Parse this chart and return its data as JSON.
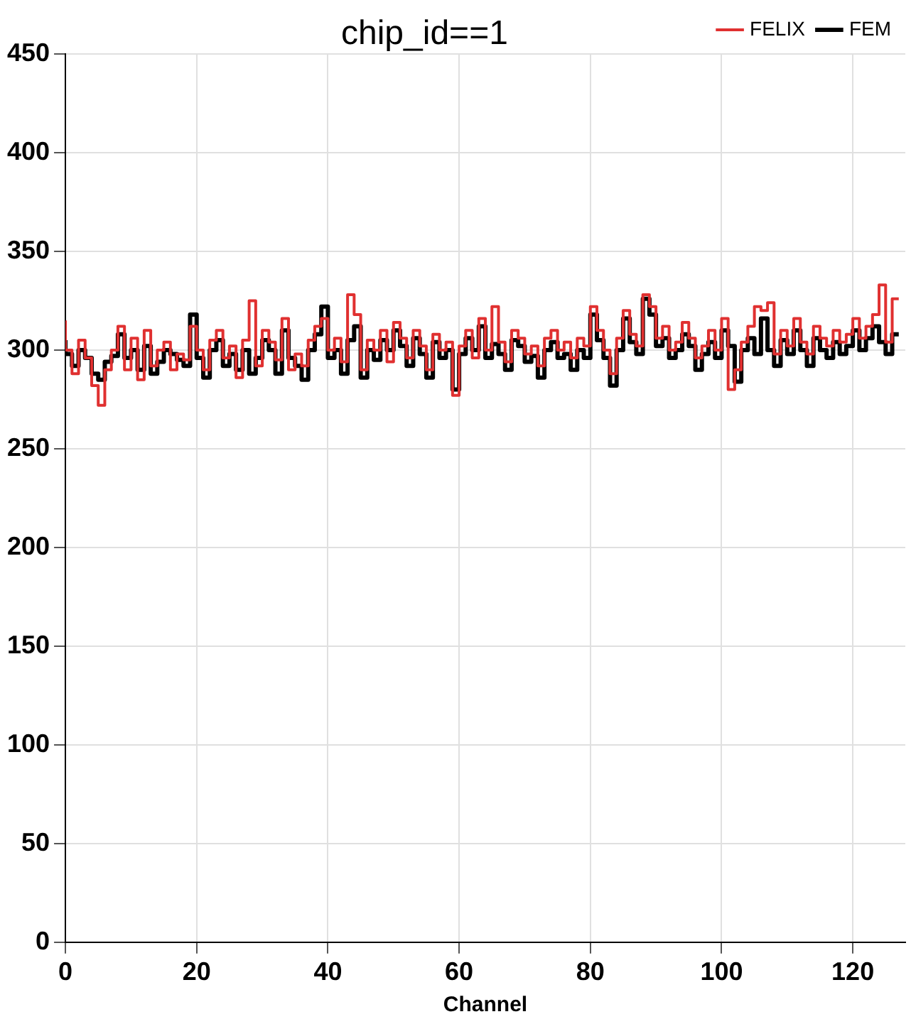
{
  "chart_data": {
    "type": "step",
    "title": "chip_id==1",
    "xlabel": "Channel",
    "x": [
      0,
      1,
      2,
      3,
      4,
      5,
      6,
      7,
      8,
      9,
      10,
      11,
      12,
      13,
      14,
      15,
      16,
      17,
      18,
      19,
      20,
      21,
      22,
      23,
      24,
      25,
      26,
      27,
      28,
      29,
      30,
      31,
      32,
      33,
      34,
      35,
      36,
      37,
      38,
      39,
      40,
      41,
      42,
      43,
      44,
      45,
      46,
      47,
      48,
      49,
      50,
      51,
      52,
      53,
      54,
      55,
      56,
      57,
      58,
      59,
      60,
      61,
      62,
      63,
      64,
      65,
      66,
      67,
      68,
      69,
      70,
      71,
      72,
      73,
      74,
      75,
      76,
      77,
      78,
      79,
      80,
      81,
      82,
      83,
      84,
      85,
      86,
      87,
      88,
      89,
      90,
      91,
      92,
      93,
      94,
      95,
      96,
      97,
      98,
      99,
      100,
      101,
      102,
      103,
      104,
      105,
      106,
      107,
      108,
      109,
      110,
      111,
      112,
      113,
      114,
      115,
      116,
      117,
      118,
      119,
      120,
      121,
      122,
      123,
      124,
      125,
      126,
      127
    ],
    "series": [
      {
        "name": "FEM",
        "color": "#000000",
        "values": [
          305,
          298,
          292,
          300,
          296,
          288,
          285,
          294,
          297,
          308,
          296,
          300,
          290,
          302,
          288,
          294,
          300,
          298,
          295,
          292,
          318,
          296,
          286,
          300,
          305,
          292,
          298,
          290,
          300,
          288,
          296,
          305,
          300,
          288,
          310,
          296,
          292,
          285,
          300,
          308,
          322,
          296,
          300,
          288,
          305,
          312,
          286,
          300,
          295,
          305,
          300,
          310,
          302,
          292,
          306,
          298,
          286,
          304,
          296,
          300,
          280,
          298,
          306,
          300,
          312,
          296,
          303,
          298,
          290,
          305,
          302,
          294,
          297,
          286,
          300,
          304,
          296,
          298,
          290,
          300,
          296,
          318,
          305,
          296,
          282,
          300,
          316,
          304,
          298,
          326,
          318,
          302,
          306,
          296,
          300,
          308,
          302,
          290,
          298,
          304,
          296,
          310,
          302,
          284,
          300,
          306,
          298,
          316,
          300,
          292,
          305,
          298,
          310,
          300,
          292,
          306,
          300,
          296,
          304,
          298,
          302,
          310,
          300,
          306,
          312,
          304,
          298,
          308
        ]
      },
      {
        "name": "FELIX",
        "color": "#e03030",
        "values": [
          315,
          300,
          288,
          305,
          296,
          282,
          272,
          290,
          300,
          312,
          290,
          306,
          285,
          310,
          292,
          300,
          304,
          290,
          298,
          295,
          312,
          300,
          290,
          305,
          310,
          296,
          302,
          286,
          305,
          325,
          292,
          310,
          304,
          295,
          316,
          290,
          298,
          292,
          305,
          312,
          316,
          300,
          306,
          294,
          328,
          318,
          290,
          305,
          300,
          310,
          294,
          314,
          306,
          296,
          310,
          302,
          290,
          308,
          300,
          304,
          277,
          302,
          310,
          296,
          316,
          300,
          322,
          304,
          294,
          310,
          306,
          298,
          302,
          292,
          306,
          310,
          300,
          304,
          296,
          306,
          302,
          322,
          310,
          300,
          288,
          306,
          320,
          308,
          302,
          328,
          322,
          306,
          312,
          300,
          304,
          314,
          306,
          296,
          302,
          310,
          300,
          316,
          280,
          290,
          304,
          312,
          322,
          320,
          324,
          298,
          310,
          302,
          316,
          304,
          298,
          312,
          306,
          302,
          310,
          304,
          308,
          316,
          306,
          312,
          318,
          333,
          304,
          326
        ]
      }
    ],
    "xlim": [
      0,
      128
    ],
    "ylim": [
      0,
      450
    ],
    "xticks": [
      0,
      20,
      40,
      60,
      80,
      100,
      120
    ],
    "yticks": [
      0,
      50,
      100,
      150,
      200,
      250,
      300,
      350,
      400,
      450
    ],
    "grid": true,
    "legend": "top right"
  }
}
